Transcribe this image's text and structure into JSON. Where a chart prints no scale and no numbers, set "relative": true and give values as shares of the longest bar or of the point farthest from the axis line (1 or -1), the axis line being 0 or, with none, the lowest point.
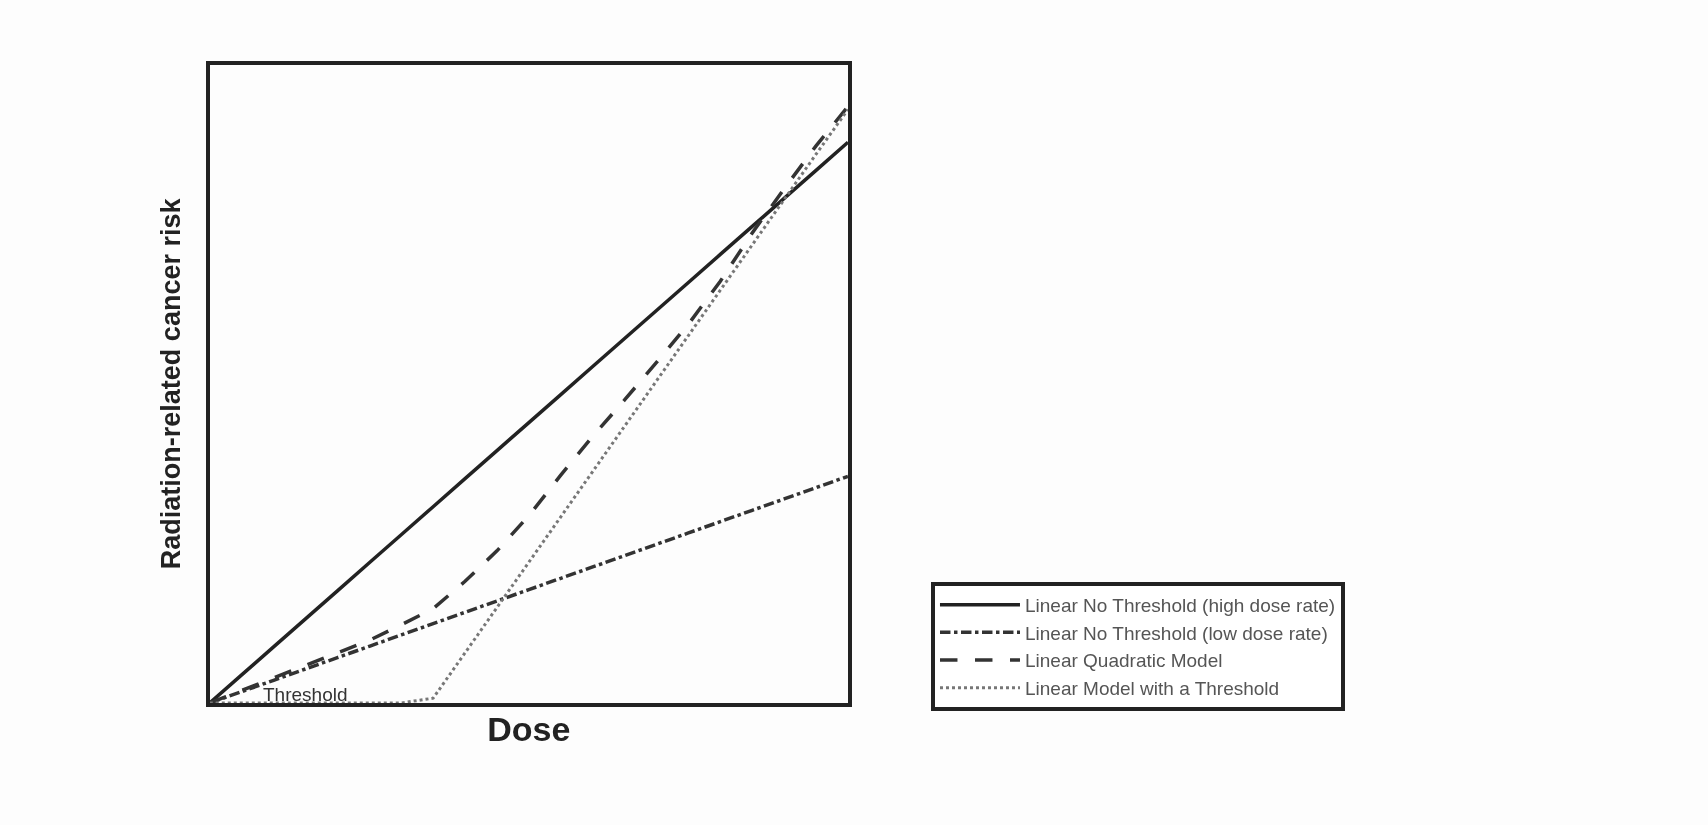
{
  "chart_data": {
    "type": "line",
    "relative": true,
    "xlabel": "Dose",
    "ylabel": "Radiation-related cancer risk",
    "tick_labels": false,
    "legend": "bottom right",
    "marker": "none",
    "annotations": [
      "Threshold"
    ],
    "categories": [
      null,
      null,
      null,
      null,
      null,
      null,
      null,
      null,
      null,
      null,
      null,
      null,
      null,
      null,
      null,
      null,
      null,
      null,
      null,
      null,
      null
    ],
    "series": [
      {
        "name": "Linear No Threshold (high dose rate)",
        "color": "#222222",
        "line_style": "solid",
        "values": [
          0,
          0.047,
          0.094,
          0.141,
          0.188,
          0.235,
          0.282,
          0.329,
          0.376,
          0.423,
          0.47,
          0.517,
          0.564,
          0.611,
          0.658,
          0.705,
          0.752,
          0.799,
          0.846,
          0.893,
          0.94
        ]
      },
      {
        "name": "Linear No Threshold (low dose rate)",
        "color": "#333333",
        "line_style": "dashdot",
        "values": [
          0,
          0.019,
          0.038,
          0.057,
          0.076,
          0.095,
          0.114,
          0.133,
          0.152,
          0.171,
          0.19,
          0.209,
          0.228,
          0.247,
          0.266,
          0.285,
          0.304,
          0.323,
          0.342,
          0.361,
          0.38
        ]
      },
      {
        "name": "Linear Quadratic Model",
        "color": "#333333",
        "line_style": "dashed",
        "values": [
          0,
          0.021,
          0.042,
          0.063,
          0.084,
          0.105,
          0.131,
          0.158,
          0.204,
          0.255,
          0.314,
          0.382,
          0.447,
          0.508,
          0.571,
          0.635,
          0.707,
          0.788,
          0.862,
          0.934,
          1
        ]
      },
      {
        "name": "Linear Model with a Threshold",
        "color": "#777777",
        "line_style": "dotted",
        "values": [
          0,
          0,
          0,
          0,
          0,
          0,
          0,
          0.008,
          0.084,
          0.16,
          0.236,
          0.312,
          0.388,
          0.464,
          0.54,
          0.616,
          0.692,
          0.768,
          0.844,
          0.92,
          0.995
        ]
      }
    ]
  }
}
